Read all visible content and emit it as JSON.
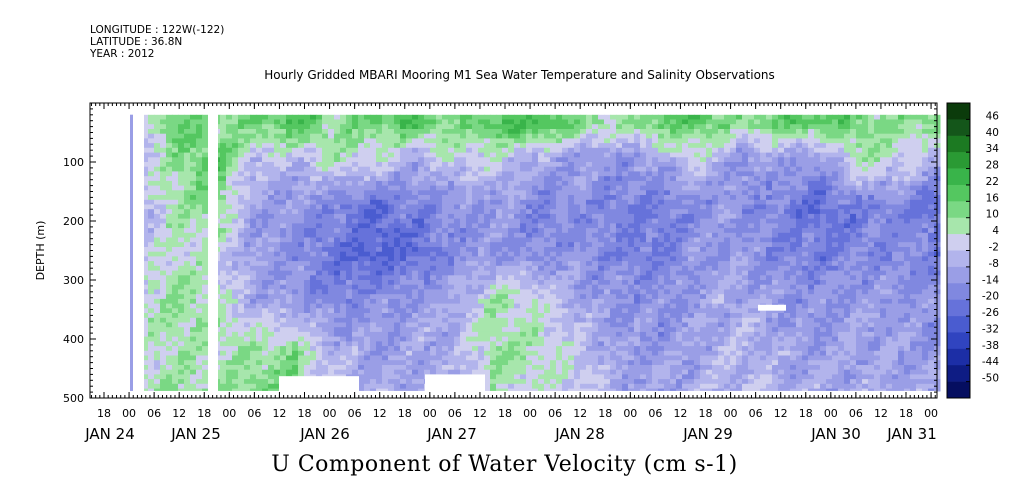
{
  "header": {
    "longitude": "LONGITUDE : 122W(-122)",
    "latitude": "LATITUDE : 36.8N",
    "year": "YEAR : 2012"
  },
  "chart_data": {
    "type": "heatmap",
    "title": "Hourly Gridded MBARI Mooring M1 Sea Water Temperature and Salinity Observations",
    "footer": "U Component of Water Velocity (cm s-1)",
    "ylabel": "DEPTH (m)",
    "ylim": [
      500,
      0
    ],
    "y_ticks": [
      100,
      200,
      300,
      400,
      500
    ],
    "x_hour_ticks": [
      "18",
      "00",
      "06",
      "12",
      "18",
      "00",
      "06",
      "12",
      "18",
      "00",
      "06",
      "12",
      "18",
      "00",
      "06",
      "12",
      "18",
      "00",
      "06",
      "12",
      "18",
      "00",
      "06",
      "12",
      "18",
      "00",
      "06",
      "12",
      "18",
      "00",
      "06",
      "12",
      "18",
      "00"
    ],
    "x_day_labels": [
      "JAN 24",
      "JAN 25",
      "JAN 26",
      "JAN 27",
      "JAN 28",
      "JAN 29",
      "JAN 30",
      "JAN 31"
    ],
    "colorbar": {
      "labels": [
        "46",
        "40",
        "34",
        "28",
        "22",
        "16",
        "10",
        "4",
        "-2",
        "-8",
        "-14",
        "-20",
        "-26",
        "-32",
        "-38",
        "-44",
        "-50"
      ],
      "colors": [
        "#0b3b0b",
        "#14561a",
        "#1c7a22",
        "#2a9a34",
        "#39b44a",
        "#54c760",
        "#7ad884",
        "#a7e6ac",
        "#cfcfef",
        "#b2b4ec",
        "#9a9ee6",
        "#8088e0",
        "#6672da",
        "#4a5cd0",
        "#3044c0",
        "#1c2ea6",
        "#0e1c84",
        "#050e60"
      ]
    },
    "field_description_rows": [
      {
        "depth": 30,
        "values": [
          -6,
          18,
          10,
          14,
          22,
          10,
          16,
          20,
          12,
          20,
          24,
          14,
          8,
          16,
          20,
          10,
          16,
          20,
          14,
          10,
          16
        ]
      },
      {
        "depth": 90,
        "values": [
          -4,
          10,
          20,
          0,
          -2,
          6,
          4,
          -6,
          4,
          2,
          -6,
          -8,
          -10,
          -8,
          4,
          -10,
          -8,
          -12,
          10,
          4,
          -6
        ]
      },
      {
        "depth": 170,
        "values": [
          -6,
          8,
          14,
          -8,
          -10,
          -14,
          -20,
          -14,
          -12,
          -8,
          -14,
          -12,
          -14,
          -16,
          -12,
          -10,
          -14,
          -20,
          -16,
          -14,
          -20
        ]
      },
      {
        "depth": 250,
        "values": [
          -4,
          6,
          4,
          -8,
          -12,
          -18,
          -24,
          -20,
          -12,
          -10,
          -14,
          -10,
          -14,
          -16,
          -10,
          -8,
          -14,
          -16,
          -14,
          -12,
          -16
        ]
      },
      {
        "depth": 330,
        "values": [
          4,
          10,
          8,
          -6,
          -10,
          -14,
          -12,
          -8,
          -6,
          8,
          4,
          -6,
          -10,
          -12,
          -8,
          -4,
          -10,
          -12,
          -8,
          -10,
          -12
        ]
      },
      {
        "depth": 420,
        "values": [
          2,
          8,
          6,
          10,
          12,
          -4,
          -8,
          -6,
          -4,
          10,
          8,
          2,
          -8,
          -10,
          -6,
          -2,
          -6,
          -8,
          -6,
          -8,
          -10
        ]
      },
      {
        "depth": 480,
        "values": [
          6,
          10,
          8,
          14,
          12,
          -2,
          -6,
          -4,
          -6,
          6,
          4,
          2,
          -6,
          -8,
          -4,
          -2,
          -4,
          -6,
          -4,
          -6,
          -8
        ]
      }
    ]
  }
}
